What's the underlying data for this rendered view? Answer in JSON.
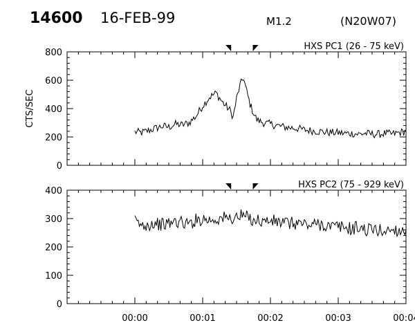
{
  "header": {
    "event_number": "14600",
    "date": "16-FEB-99",
    "goes_class": "M1.2",
    "location": "(N20W07)"
  },
  "colors": {
    "line": "#000000",
    "background": "#ffffff"
  },
  "chart_data": [
    {
      "type": "line",
      "title": "HXS PC1 (26 - 75 keV)",
      "ylabel": "CTS/SEC",
      "xlabel": "",
      "ylim": [
        0,
        800
      ],
      "yticks": [
        "0",
        "200",
        "400",
        "600",
        "800"
      ],
      "xlim": [
        -1.0,
        4.0
      ],
      "x_unit": "minutes from 00:00",
      "xtick_labels": [],
      "markers_x": [
        1.42,
        1.74
      ],
      "grid": false,
      "series": [
        {
          "x": [
            0.0,
            0.1,
            0.2,
            0.3,
            0.4,
            0.5,
            0.6,
            0.7,
            0.8,
            0.9,
            1.0,
            1.1,
            1.2,
            1.3,
            1.4,
            1.45,
            1.5,
            1.55,
            1.6,
            1.65,
            1.7,
            1.75,
            1.8,
            1.9,
            2.0,
            2.1,
            2.2,
            2.3,
            2.4,
            2.5,
            2.6,
            2.7,
            2.8,
            2.9,
            3.0,
            3.1,
            3.2,
            3.3,
            3.4,
            3.5,
            3.6,
            3.7,
            3.8,
            3.9,
            4.0
          ],
          "values": [
            235,
            230,
            245,
            260,
            275,
            270,
            290,
            285,
            300,
            345,
            420,
            480,
            510,
            440,
            390,
            340,
            470,
            560,
            620,
            520,
            430,
            370,
            320,
            300,
            290,
            280,
            270,
            265,
            260,
            250,
            245,
            240,
            235,
            230,
            230,
            225,
            225,
            220,
            225,
            220,
            220,
            225,
            220,
            230,
            240
          ]
        }
      ]
    },
    {
      "type": "line",
      "title": "HXS PC2 (75 - 929 keV)",
      "ylabel": "",
      "xlabel": "",
      "ylim": [
        0,
        400
      ],
      "yticks": [
        "0",
        "100",
        "200",
        "300",
        "400"
      ],
      "xlim": [
        -1.0,
        4.0
      ],
      "x_unit": "minutes from 00:00",
      "xtick_labels": [
        "00:00",
        "00:01",
        "00:02",
        "00:03",
        "00:04"
      ],
      "markers_x": [
        1.42,
        1.74
      ],
      "grid": false,
      "series": [
        {
          "x": [
            0.0,
            0.1,
            0.2,
            0.3,
            0.4,
            0.5,
            0.6,
            0.7,
            0.8,
            0.9,
            1.0,
            1.1,
            1.2,
            1.3,
            1.4,
            1.5,
            1.6,
            1.7,
            1.8,
            1.9,
            2.0,
            2.1,
            2.2,
            2.3,
            2.4,
            2.5,
            2.6,
            2.7,
            2.8,
            2.9,
            3.0,
            3.1,
            3.2,
            3.3,
            3.4,
            3.5,
            3.6,
            3.7,
            3.8,
            3.9,
            4.0
          ],
          "values": [
            290,
            275,
            280,
            285,
            278,
            282,
            290,
            286,
            280,
            295,
            300,
            295,
            298,
            302,
            300,
            305,
            310,
            300,
            295,
            290,
            292,
            288,
            285,
            282,
            285,
            280,
            276,
            282,
            278,
            270,
            272,
            268,
            264,
            270,
            260,
            262,
            258,
            256,
            262,
            258,
            260
          ]
        }
      ]
    }
  ]
}
